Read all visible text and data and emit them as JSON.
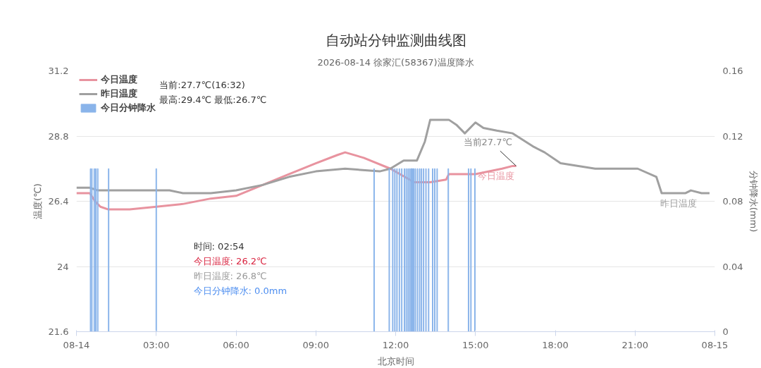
{
  "chart_data": {
    "type": "line",
    "title": "自动站分钟监测曲线图",
    "subtitle": "2026-08-14 徐家汇(58367)温度降水",
    "xlabel": "北京时间",
    "ylabel": "温度(℃)",
    "y2label": "分钟降水(mm)",
    "xlim": [
      0,
      24
    ],
    "xticks": [
      {
        "value": 0,
        "label": "08-14"
      },
      {
        "value": 3,
        "label": "03:00"
      },
      {
        "value": 6,
        "label": "06:00"
      },
      {
        "value": 9,
        "label": "09:00"
      },
      {
        "value": 12,
        "label": "12:00"
      },
      {
        "value": 15,
        "label": "15:00"
      },
      {
        "value": 18,
        "label": "18:00"
      },
      {
        "value": 21,
        "label": "21:00"
      },
      {
        "value": 24,
        "label": "08-15"
      }
    ],
    "ylim": [
      21.6,
      31.2
    ],
    "yticks": [
      21.6,
      24,
      26.4,
      28.8,
      31.2
    ],
    "y2lim": [
      0,
      0.16
    ],
    "y2ticks": [
      0,
      0.04,
      0.08,
      0.12,
      0.16
    ],
    "grid": "y",
    "legend": "top left",
    "series": [
      {
        "name": "今日温度",
        "color": "#e8939f",
        "x": [
          0,
          0.5,
          0.7,
          0.9,
          1.2,
          2.0,
          3.0,
          4.0,
          5.05,
          6.0,
          7.0,
          8.0,
          9.0,
          9.8,
          10.1,
          10.8,
          11.8,
          12.7,
          13.3,
          13.9,
          14.0,
          15.0,
          16.0,
          16.4,
          16.53
        ],
        "values": [
          26.7,
          26.7,
          26.4,
          26.2,
          26.1,
          26.1,
          26.2,
          26.3,
          26.5,
          26.6,
          27.0,
          27.4,
          27.8,
          28.1,
          28.2,
          28.0,
          27.6,
          27.1,
          27.1,
          27.2,
          27.4,
          27.4,
          27.6,
          27.7,
          27.7
        ]
      },
      {
        "name": "昨日温度",
        "color": "#a0a0a0",
        "x": [
          0,
          0.5,
          0.8,
          2.0,
          3.5,
          4.0,
          5.05,
          6.0,
          7.0,
          8.0,
          9.0,
          10.1,
          11.4,
          11.8,
          12.3,
          12.8,
          13.1,
          13.3,
          14.0,
          14.3,
          14.6,
          15.0,
          15.3,
          15.8,
          16.4,
          17.2,
          17.6,
          18.2,
          19.5,
          21.1,
          21.8,
          22.0,
          22.9,
          23.1,
          23.5,
          23.8
        ],
        "values": [
          26.9,
          26.9,
          26.8,
          26.8,
          26.8,
          26.7,
          26.7,
          26.8,
          27.0,
          27.3,
          27.5,
          27.6,
          27.5,
          27.6,
          27.9,
          27.9,
          28.6,
          29.4,
          29.4,
          29.2,
          28.9,
          29.3,
          29.1,
          29.0,
          28.9,
          28.4,
          28.2,
          27.8,
          27.6,
          27.6,
          27.3,
          26.7,
          26.7,
          26.8,
          26.7,
          26.7
        ]
      },
      {
        "name": "今日分钟降水",
        "type": "bar",
        "axis": "y2",
        "color": "#8ab4ea",
        "x": [
          0.53,
          0.58,
          0.67,
          0.73,
          0.8,
          1.21,
          3.0,
          11.19,
          11.76,
          11.89,
          11.97,
          12.05,
          12.14,
          12.23,
          12.33,
          12.4,
          12.47,
          12.53,
          12.58,
          12.61,
          12.65,
          12.68,
          12.74,
          12.82,
          12.9,
          12.97,
          13.05,
          13.14,
          13.24,
          13.39,
          13.47,
          13.56,
          13.98,
          14.74,
          14.83,
          14.98
        ],
        "values": [
          0.1,
          0.1,
          0.1,
          0.1,
          0.1,
          0.1,
          0.1,
          0.1,
          0.1,
          0.1,
          0.1,
          0.1,
          0.1,
          0.1,
          0.1,
          0.1,
          0.1,
          0.1,
          0.1,
          0.1,
          0.1,
          0.1,
          0.1,
          0.1,
          0.1,
          0.1,
          0.1,
          0.1,
          0.1,
          0.1,
          0.1,
          0.1,
          0.1,
          0.1,
          0.1,
          0.1
        ]
      }
    ],
    "annotations": [
      "当前:27.7℃(16:32)",
      "最高:29.4℃ 最低:26.7℃",
      {
        "text": "当前27.7℃",
        "x": 16.53,
        "y": 27.7
      },
      "时间: 02:54",
      "今日温度: 26.2℃",
      "昨日温度: 26.8℃",
      "今日分钟降水: 0.0mm"
    ]
  }
}
